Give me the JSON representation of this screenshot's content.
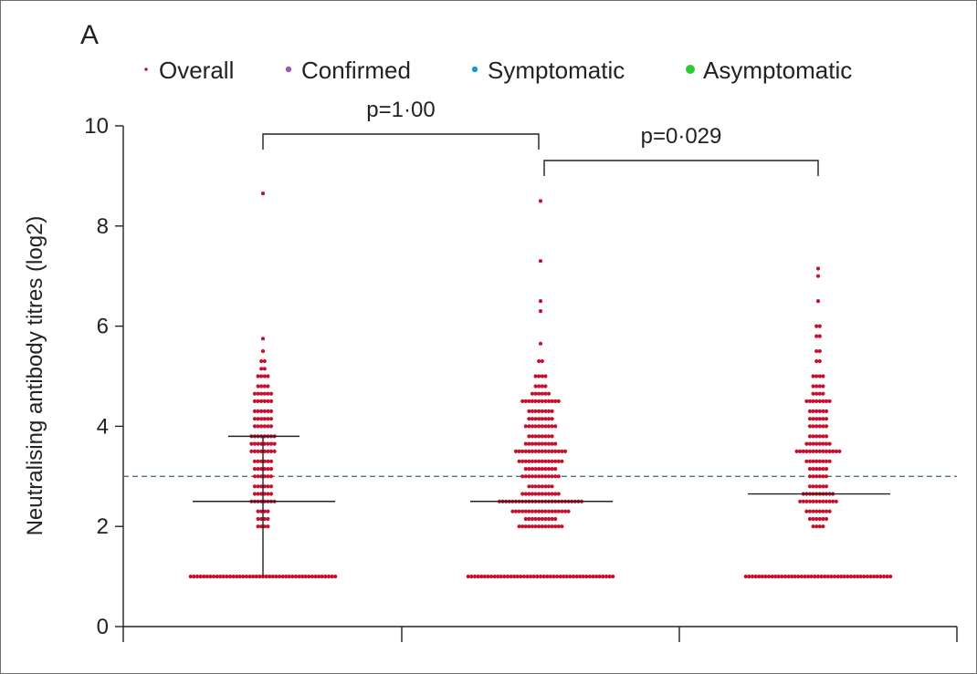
{
  "chart_data": {
    "type": "scatter",
    "panel_label": "A",
    "ylabel": "Neutralising antibody titres (log2)",
    "ylim": [
      0,
      10
    ],
    "yticks": [
      0,
      2,
      4,
      6,
      8,
      10
    ],
    "grid": false,
    "legend_placement": "top",
    "legend": [
      {
        "label": "Overall",
        "color": "#c8102e",
        "marker_size": "small"
      },
      {
        "label": "Confirmed",
        "color": "#9b59b6",
        "marker_size": "small"
      },
      {
        "label": "Symptomatic",
        "color": "#1a9ccf",
        "marker_size": "small"
      },
      {
        "label": "Asymptomatic",
        "color": "#2ecc2e",
        "marker_size": "large"
      }
    ],
    "reference_line": {
      "y": 3,
      "style": "dashed",
      "color": "#4a7a78"
    },
    "comparisons": [
      {
        "between": [
          0,
          1
        ],
        "label": "p=1·00"
      },
      {
        "between": [
          1,
          2
        ],
        "label": "p=0·029"
      }
    ],
    "groups": [
      {
        "median": 2.5,
        "upper_bar": 3.8,
        "lower_bar": 1.0,
        "color": "#c8102e",
        "bins": [
          [
            1.0,
            45
          ],
          [
            2.0,
            4
          ],
          [
            2.15,
            4
          ],
          [
            2.3,
            4
          ],
          [
            2.5,
            8
          ],
          [
            2.65,
            6
          ],
          [
            2.8,
            6
          ],
          [
            3.0,
            6
          ],
          [
            3.15,
            6
          ],
          [
            3.3,
            6
          ],
          [
            3.5,
            8
          ],
          [
            3.65,
            8
          ],
          [
            3.8,
            8
          ],
          [
            4.0,
            6
          ],
          [
            4.15,
            6
          ],
          [
            4.3,
            6
          ],
          [
            4.5,
            6
          ],
          [
            4.65,
            6
          ],
          [
            4.8,
            4
          ],
          [
            5.0,
            4
          ],
          [
            5.15,
            2
          ],
          [
            5.3,
            2
          ],
          [
            5.5,
            1
          ],
          [
            5.75,
            1
          ],
          [
            8.65,
            1
          ]
        ]
      },
      {
        "median": 2.5,
        "color": "#c8102e",
        "bins": [
          [
            1.0,
            45
          ],
          [
            2.0,
            14
          ],
          [
            2.15,
            10
          ],
          [
            2.3,
            18
          ],
          [
            2.5,
            26
          ],
          [
            2.65,
            12
          ],
          [
            2.8,
            8
          ],
          [
            3.0,
            12
          ],
          [
            3.15,
            10
          ],
          [
            3.3,
            14
          ],
          [
            3.5,
            16
          ],
          [
            3.65,
            10
          ],
          [
            3.8,
            8
          ],
          [
            4.0,
            10
          ],
          [
            4.15,
            8
          ],
          [
            4.3,
            8
          ],
          [
            4.5,
            12
          ],
          [
            4.65,
            6
          ],
          [
            4.8,
            4
          ],
          [
            5.0,
            4
          ],
          [
            5.3,
            2
          ],
          [
            5.65,
            1
          ],
          [
            6.3,
            1
          ],
          [
            6.5,
            1
          ],
          [
            7.3,
            1
          ],
          [
            8.5,
            1
          ]
        ]
      },
      {
        "median": 2.65,
        "color": "#c8102e",
        "bins": [
          [
            1.0,
            45
          ],
          [
            2.0,
            4
          ],
          [
            2.15,
            6
          ],
          [
            2.3,
            8
          ],
          [
            2.5,
            12
          ],
          [
            2.65,
            10
          ],
          [
            2.8,
            6
          ],
          [
            3.0,
            6
          ],
          [
            3.15,
            6
          ],
          [
            3.3,
            8
          ],
          [
            3.5,
            14
          ],
          [
            3.65,
            8
          ],
          [
            3.8,
            6
          ],
          [
            4.0,
            6
          ],
          [
            4.15,
            6
          ],
          [
            4.3,
            6
          ],
          [
            4.5,
            8
          ],
          [
            4.65,
            4
          ],
          [
            4.8,
            4
          ],
          [
            5.0,
            4
          ],
          [
            5.3,
            2
          ],
          [
            5.5,
            2
          ],
          [
            5.8,
            2
          ],
          [
            6.0,
            2
          ],
          [
            6.5,
            1
          ],
          [
            7.0,
            1
          ],
          [
            7.15,
            1
          ]
        ]
      }
    ]
  }
}
